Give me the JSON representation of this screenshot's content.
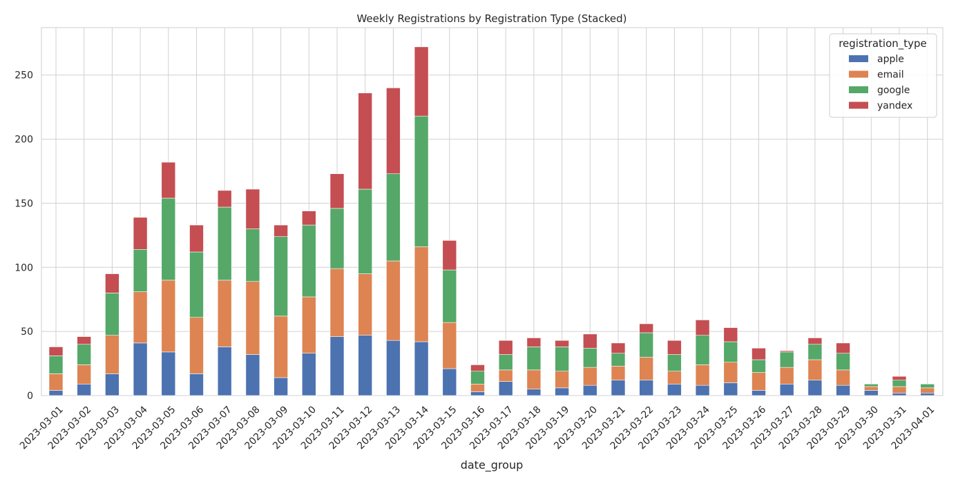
{
  "chart_data": {
    "type": "bar",
    "stacked": true,
    "title": "Weekly Registrations by Registration Type (Stacked)",
    "xlabel": "date_group",
    "ylabel": "",
    "ylim": [
      0,
      287
    ],
    "yticks": [
      0,
      50,
      100,
      150,
      200,
      250
    ],
    "grid": true,
    "legend": {
      "title": "registration_type",
      "placement": "top-right"
    },
    "categories": [
      "2023-03-01",
      "2023-03-02",
      "2023-03-03",
      "2023-03-04",
      "2023-03-05",
      "2023-03-06",
      "2023-03-07",
      "2023-03-08",
      "2023-03-09",
      "2023-03-10",
      "2023-03-11",
      "2023-03-12",
      "2023-03-13",
      "2023-03-14",
      "2023-03-15",
      "2023-03-16",
      "2023-03-17",
      "2023-03-18",
      "2023-03-19",
      "2023-03-20",
      "2023-03-21",
      "2023-03-22",
      "2023-03-23",
      "2023-03-24",
      "2023-03-25",
      "2023-03-26",
      "2023-03-27",
      "2023-03-28",
      "2023-03-29",
      "2023-03-30",
      "2023-03-31",
      "2023-04-01"
    ],
    "series": [
      {
        "name": "apple",
        "color": "#4c72b0",
        "values": [
          4,
          9,
          17,
          41,
          34,
          17,
          38,
          32,
          14,
          33,
          46,
          47,
          43,
          42,
          21,
          3,
          11,
          5,
          6,
          8,
          12,
          12,
          9,
          8,
          10,
          4,
          9,
          12,
          8,
          4,
          2,
          2
        ]
      },
      {
        "name": "email",
        "color": "#dd8452",
        "values": [
          13,
          15,
          30,
          40,
          56,
          44,
          52,
          57,
          48,
          44,
          53,
          48,
          62,
          74,
          36,
          6,
          9,
          15,
          13,
          14,
          11,
          18,
          10,
          16,
          16,
          14,
          13,
          16,
          12,
          3,
          5,
          4
        ]
      },
      {
        "name": "google",
        "color": "#55a868",
        "values": [
          14,
          16,
          33,
          33,
          64,
          51,
          57,
          41,
          62,
          56,
          47,
          66,
          68,
          102,
          41,
          10,
          12,
          18,
          19,
          15,
          10,
          19,
          13,
          23,
          16,
          10,
          12,
          12,
          13,
          2,
          5,
          3
        ]
      },
      {
        "name": "yandex",
        "color": "#c44e52",
        "values": [
          7,
          6,
          15,
          25,
          28,
          21,
          13,
          31,
          9,
          11,
          27,
          75,
          67,
          54,
          23,
          5,
          11,
          7,
          5,
          11,
          8,
          7,
          11,
          12,
          11,
          9,
          1,
          5,
          8,
          0,
          3,
          0
        ]
      }
    ]
  }
}
